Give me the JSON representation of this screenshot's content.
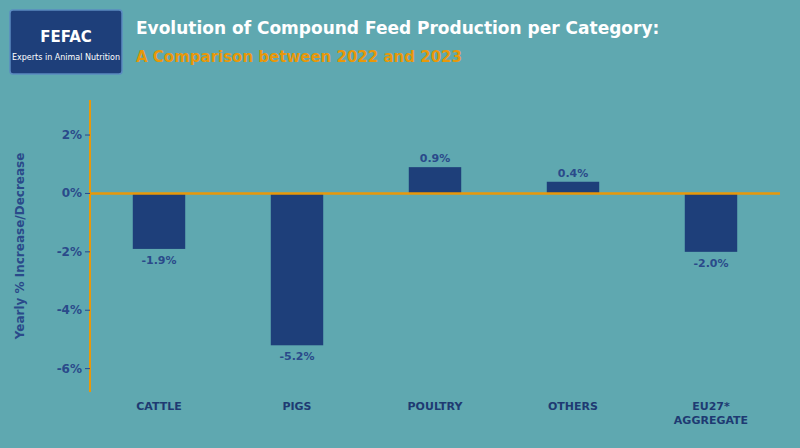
{
  "chart_data": {
    "type": "bar",
    "title": "Evolution of Compound Feed Production per Category:",
    "subtitle": "A Comparison between 2022 and 2023",
    "categories": [
      "CATTLE",
      "PIGS",
      "POULTRY",
      "OTHERS",
      "EU27*\nAGGREGATE"
    ],
    "values": [
      -1.9,
      -5.2,
      0.9,
      0.4,
      -2.0
    ],
    "value_labels": [
      "-1.9%",
      "-5.2%",
      "0.9%",
      "0.4%",
      "-2.0%"
    ],
    "data_labels": true,
    "color": "#1e3f7a",
    "ylabel": "Yearly % Increase/Decrease",
    "ylim": [
      -6.8,
      3.2
    ],
    "yticks": [
      {
        "value": -6,
        "label": "-6%"
      },
      {
        "value": -4,
        "label": "-4%"
      },
      {
        "value": -2,
        "label": "-2%"
      },
      {
        "value": 0,
        "label": "0%"
      },
      {
        "value": 2,
        "label": "2%"
      }
    ],
    "grid": false,
    "annotations": [
      "FEFAC",
      "Experts in Animal Nutrition"
    ]
  }
}
